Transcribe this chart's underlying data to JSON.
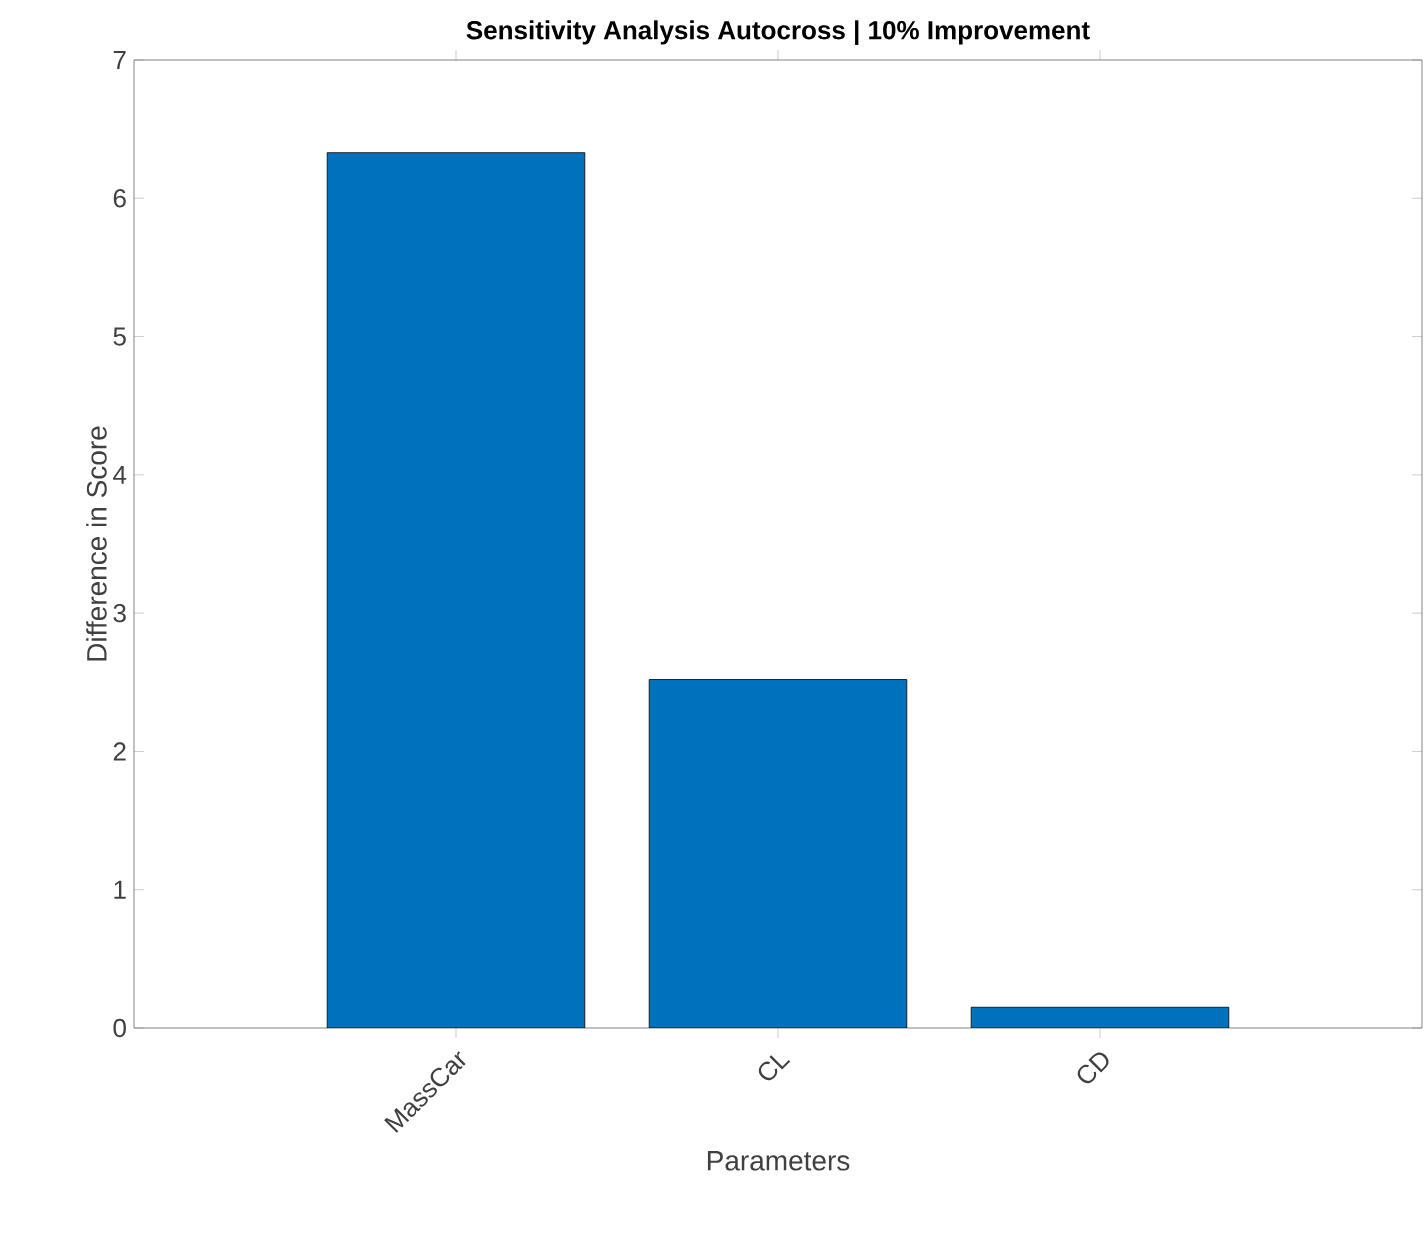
{
  "chart_data": {
    "type": "bar",
    "title": "Sensitivity Analysis Autocross | 10% Improvement",
    "xlabel": "Parameters",
    "ylabel": "Difference in Score",
    "categories": [
      "MassCar",
      "CL",
      "CD"
    ],
    "values": [
      6.33,
      2.52,
      0.15
    ],
    "color": "#0072bd",
    "ylim": [
      0,
      7
    ],
    "yticks": [
      0,
      1,
      2,
      3,
      4,
      5,
      6,
      7
    ],
    "grid": false
  }
}
